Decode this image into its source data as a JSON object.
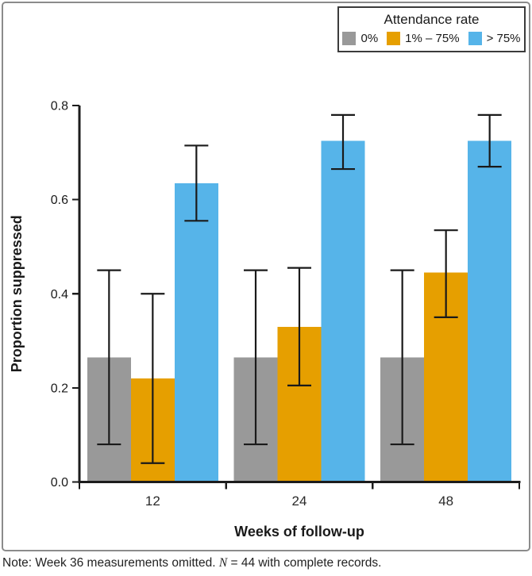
{
  "legend": {
    "title": "Attendance rate",
    "items": [
      {
        "label": "0%",
        "color": "#999999"
      },
      {
        "label": "1% – 75%",
        "color": "#E69F00"
      },
      {
        "label": "> 75%",
        "color": "#56B4E9"
      }
    ]
  },
  "note": {
    "prefix": "Note: Week 36 measurements omitted. ",
    "n_symbol": "N",
    "suffix": " = 44 with complete records."
  },
  "chart_data": {
    "type": "bar",
    "title": "",
    "xlabel": "Weeks of follow-up",
    "ylabel": "Proportion suppressed",
    "categories": [
      "12",
      "24",
      "48"
    ],
    "series": [
      {
        "name": "0%",
        "color": "#999999",
        "values": [
          0.265,
          0.265,
          0.265
        ],
        "ci_low": [
          0.08,
          0.08,
          0.08
        ],
        "ci_high": [
          0.45,
          0.45,
          0.45
        ]
      },
      {
        "name": "1% – 75%",
        "color": "#E69F00",
        "values": [
          0.22,
          0.33,
          0.445
        ],
        "ci_low": [
          0.04,
          0.205,
          0.35
        ],
        "ci_high": [
          0.4,
          0.455,
          0.535
        ]
      },
      {
        "name": "> 75%",
        "color": "#56B4E9",
        "values": [
          0.635,
          0.725,
          0.725
        ],
        "ci_low": [
          0.555,
          0.665,
          0.67
        ],
        "ci_high": [
          0.715,
          0.78,
          0.78
        ]
      }
    ],
    "error_bars": true,
    "yticks": [
      0,
      0.2,
      0.4,
      0.6,
      0.8
    ],
    "ylim": [
      0,
      0.8
    ],
    "grid": false,
    "legend_position": "top-right",
    "axis_color": "#1c1c1c"
  }
}
